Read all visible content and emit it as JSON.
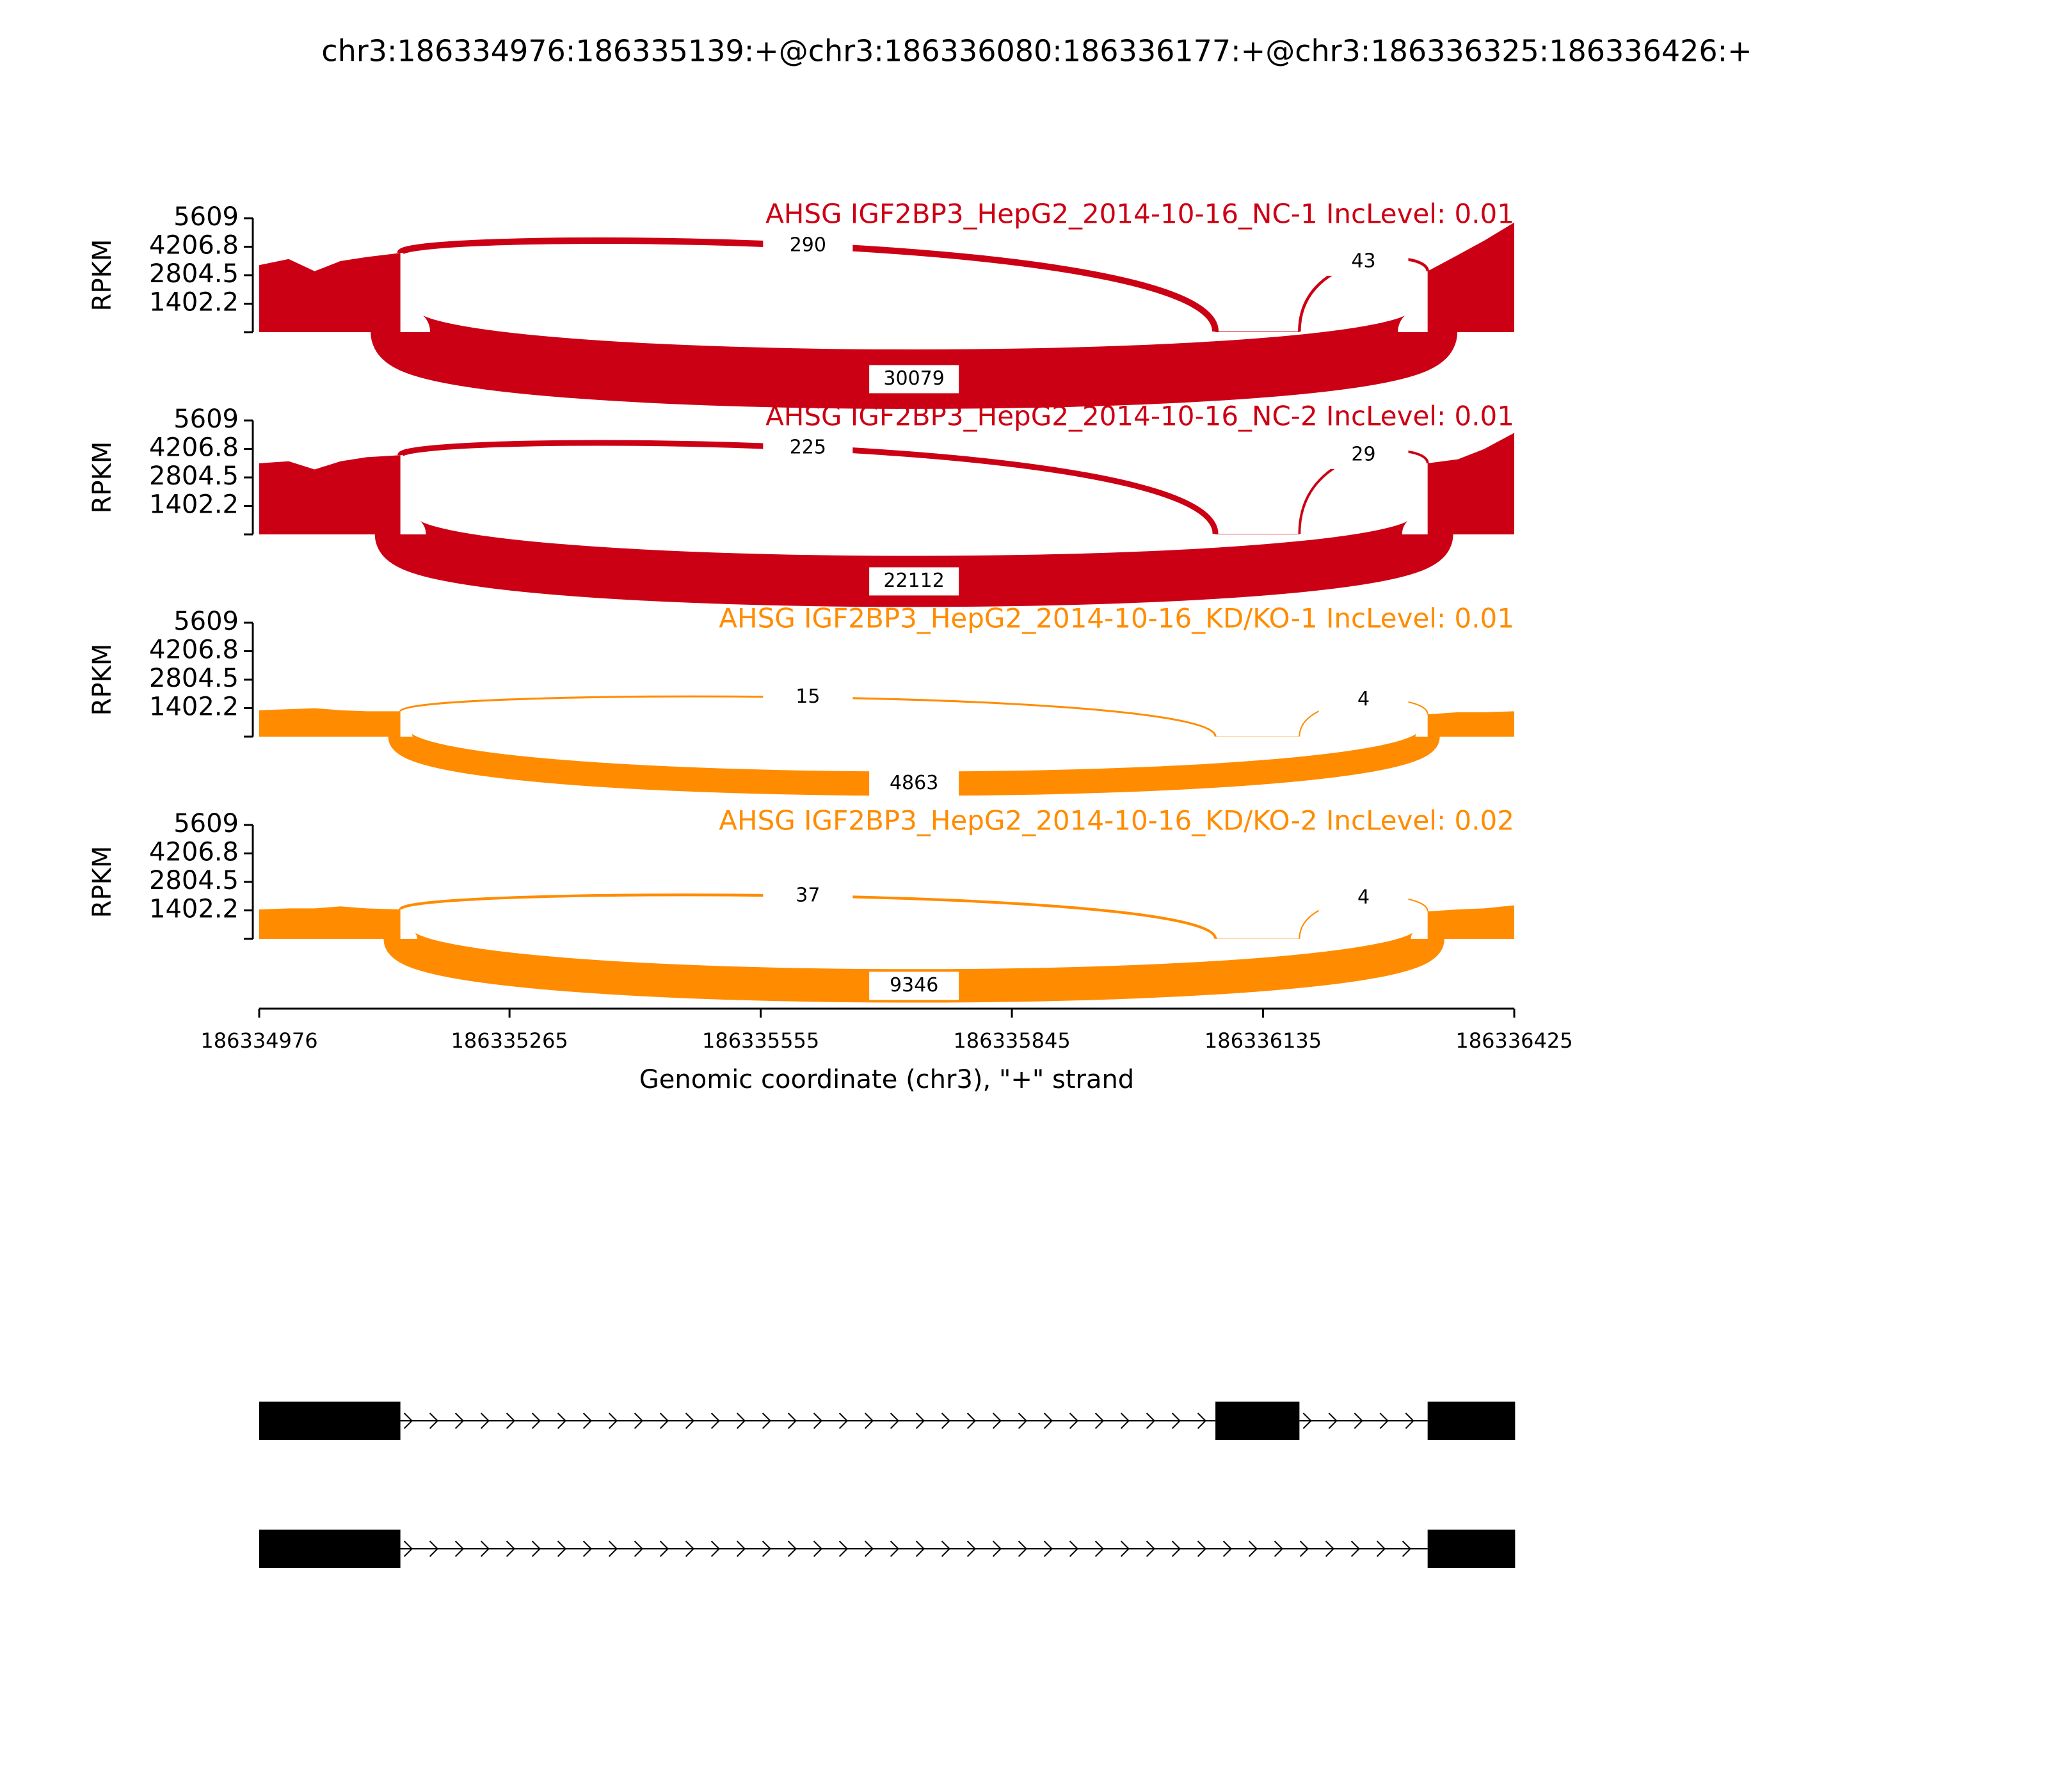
{
  "chart_data": {
    "type": "sashimi",
    "title": "chr3:186334976:186335139:+@chr3:186336080:186336177:+@chr3:186336325:186336426:+",
    "xlabel": "Genomic coordinate (chr3), \"+\" strand",
    "ylabel": "RPKM",
    "xlim": [
      186334976,
      186336425
    ],
    "xticks": [
      186334976,
      186335265,
      186335555,
      186335845,
      186336135,
      186336425
    ],
    "ylim": [
      0,
      5609
    ],
    "yticks": [
      1402.2,
      2804.5,
      4206.8,
      5609
    ],
    "x": [
      186334976,
      186335010,
      186335040,
      186335070,
      186335100,
      186335139,
      186335600,
      186336080,
      186336130,
      186336177,
      186336250,
      186336325,
      186336360,
      186336390,
      186336425
    ],
    "panels": [
      {
        "title": "AHSG IGF2BP3_HepG2_2014-10-16_NC-1 IncLevel: 0.01",
        "color": "#cc0014",
        "values": [
          3300,
          3600,
          3000,
          3500,
          3700,
          3900,
          null,
          30,
          30,
          30,
          null,
          3000,
          3800,
          4500,
          5400
        ],
        "junctions": [
          {
            "start": 186335139,
            "end": 186336080,
            "count": 290
          },
          {
            "start": 186336177,
            "end": 186336325,
            "count": 43
          },
          {
            "start": 186335139,
            "end": 186336325,
            "count": 30079
          }
        ]
      },
      {
        "title": "AHSG IGF2BP3_HepG2_2014-10-16_NC-2 IncLevel: 0.01",
        "color": "#cc0014",
        "values": [
          3500,
          3600,
          3200,
          3600,
          3800,
          3900,
          null,
          25,
          25,
          25,
          null,
          3500,
          3700,
          4200,
          5000
        ],
        "junctions": [
          {
            "start": 186335139,
            "end": 186336080,
            "count": 225
          },
          {
            "start": 186336177,
            "end": 186336325,
            "count": 29
          },
          {
            "start": 186335139,
            "end": 186336325,
            "count": 22112
          }
        ]
      },
      {
        "title": "AHSG IGF2BP3_HepG2_2014-10-16_KD/KO-1 IncLevel: 0.01",
        "color": "#ff8c00",
        "values": [
          1300,
          1350,
          1400,
          1300,
          1250,
          1250,
          null,
          10,
          10,
          10,
          null,
          1100,
          1200,
          1200,
          1250
        ],
        "junctions": [
          {
            "start": 186335139,
            "end": 186336080,
            "count": 15
          },
          {
            "start": 186336177,
            "end": 186336325,
            "count": 4
          },
          {
            "start": 186335139,
            "end": 186336325,
            "count": 4863
          }
        ]
      },
      {
        "title": "AHSG IGF2BP3_HepG2_2014-10-16_KD/KO-2 IncLevel: 0.02",
        "color": "#ff8c00",
        "values": [
          1450,
          1500,
          1500,
          1600,
          1500,
          1450,
          null,
          10,
          10,
          10,
          null,
          1350,
          1450,
          1500,
          1650
        ],
        "junctions": [
          {
            "start": 186335139,
            "end": 186336080,
            "count": 37
          },
          {
            "start": 186336177,
            "end": 186336325,
            "count": 4
          },
          {
            "start": 186335139,
            "end": 186336325,
            "count": 9346
          }
        ]
      }
    ],
    "transcripts": [
      {
        "exons": [
          [
            186334976,
            186335139
          ],
          [
            186336080,
            186336177
          ],
          [
            186336325,
            186336426
          ]
        ]
      },
      {
        "exons": [
          [
            186334976,
            186335139
          ],
          [
            186336325,
            186336426
          ]
        ]
      }
    ]
  }
}
